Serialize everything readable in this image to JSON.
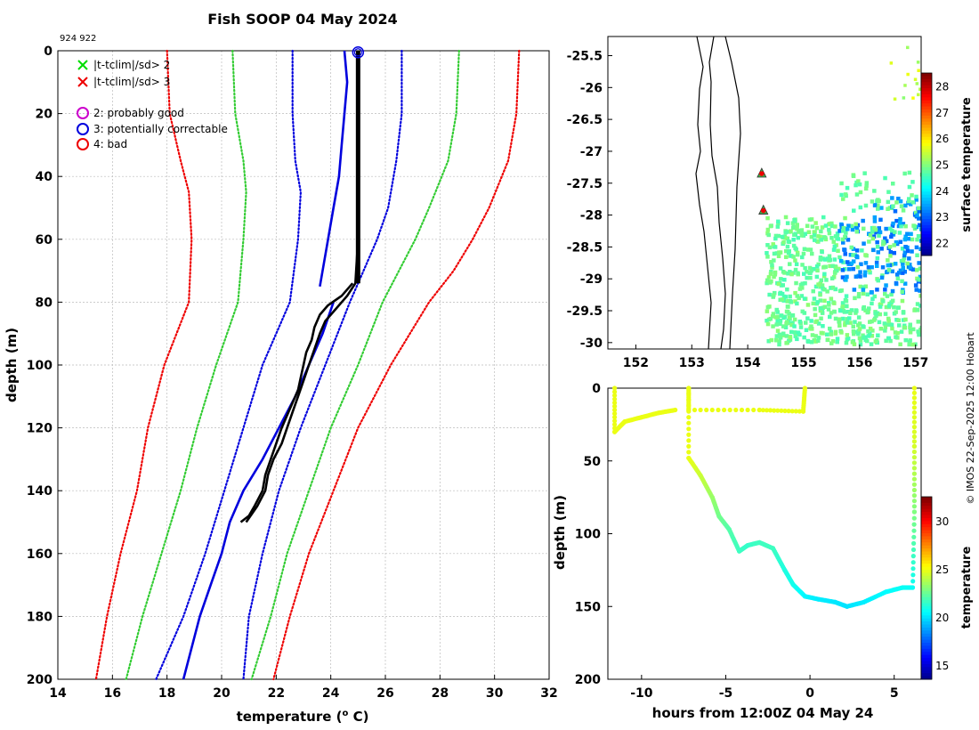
{
  "figure": {
    "title": "Fish SOOP 04 May 2024",
    "id_label": "924 922",
    "credit": "© IMOS 22-Sep-2025 12:00 Hobart"
  },
  "chart_data": [
    {
      "name": "profile",
      "type": "line",
      "xlabel": "temperature (o C)",
      "ylabel": "depth (m)",
      "xlim": [
        14,
        32
      ],
      "ylim": [
        200,
        0
      ],
      "xticks": [
        14,
        16,
        18,
        20,
        22,
        24,
        26,
        28,
        30,
        32
      ],
      "yticks": [
        0,
        20,
        40,
        60,
        80,
        100,
        120,
        140,
        160,
        180,
        200
      ],
      "grid": true,
      "legend": [
        {
          "marker": "x",
          "color": "#00dd00",
          "label": "|t-tclim|/sd> 2"
        },
        {
          "marker": "x",
          "color": "#ee0000",
          "label": "|t-tclim|/sd> 3"
        },
        {
          "marker": "o",
          "color": "#cc00cc",
          "label": "2: probably good"
        },
        {
          "marker": "o",
          "color": "#0000dd",
          "label": "3: potentially correctable"
        },
        {
          "marker": "o",
          "color": "#ee0000",
          "label": "4: bad"
        }
      ],
      "series": [
        {
          "name": "clim -3sd",
          "color": "#ee0000",
          "style": "dotted",
          "depth": [
            0,
            20,
            35,
            45,
            60,
            80,
            100,
            120,
            140,
            160,
            180,
            200
          ],
          "temp": [
            18.0,
            18.1,
            18.5,
            18.8,
            18.9,
            18.8,
            17.9,
            17.3,
            16.9,
            16.3,
            15.8,
            15.4
          ]
        },
        {
          "name": "clim -2sd",
          "color": "#33cc33",
          "style": "dotted",
          "depth": [
            0,
            20,
            35,
            45,
            60,
            80,
            100,
            120,
            140,
            160,
            180,
            200
          ],
          "temp": [
            20.4,
            20.5,
            20.8,
            20.9,
            20.8,
            20.6,
            19.8,
            19.1,
            18.5,
            17.8,
            17.1,
            16.5
          ]
        },
        {
          "name": "clim -1sd",
          "color": "#0000dd",
          "style": "dotted",
          "depth": [
            0,
            20,
            35,
            45,
            60,
            80,
            100,
            120,
            140,
            160,
            180,
            200
          ],
          "temp": [
            22.6,
            22.6,
            22.7,
            22.9,
            22.8,
            22.5,
            21.5,
            20.8,
            20.1,
            19.4,
            18.6,
            17.6
          ]
        },
        {
          "name": "climatology mean",
          "color": "#0000dd",
          "style": "solid",
          "depth": [
            0,
            10,
            20,
            30,
            40,
            50,
            60,
            75
          ],
          "temp": [
            24.5,
            24.6,
            24.5,
            24.4,
            24.3,
            24.1,
            23.9,
            23.6
          ]
        },
        {
          "name": "climatology mean deep",
          "color": "#0000dd",
          "style": "solid",
          "depth": [
            80,
            90,
            100,
            110,
            120,
            130,
            140,
            150,
            160,
            170,
            180,
            190,
            200
          ],
          "temp": [
            24.1,
            23.7,
            23.2,
            22.7,
            22.1,
            21.5,
            20.8,
            20.3,
            20.0,
            19.6,
            19.2,
            18.9,
            18.6
          ]
        },
        {
          "name": "clim +1sd",
          "color": "#0000dd",
          "style": "dotted",
          "depth": [
            0,
            20,
            35,
            50,
            60,
            70,
            80,
            100,
            120,
            140,
            160,
            180,
            200
          ],
          "temp": [
            26.6,
            26.6,
            26.4,
            26.1,
            25.7,
            25.2,
            24.7,
            23.8,
            22.9,
            22.1,
            21.5,
            21.0,
            20.8
          ]
        },
        {
          "name": "clim +2sd",
          "color": "#33cc33",
          "style": "dotted",
          "depth": [
            0,
            20,
            35,
            50,
            60,
            70,
            80,
            100,
            120,
            140,
            160,
            180,
            200
          ],
          "temp": [
            28.7,
            28.6,
            28.3,
            27.6,
            27.1,
            26.5,
            25.9,
            25.0,
            24.0,
            23.2,
            22.4,
            21.8,
            21.1
          ]
        },
        {
          "name": "clim +3sd",
          "color": "#ee0000",
          "style": "dotted",
          "depth": [
            0,
            20,
            35,
            50,
            60,
            70,
            80,
            100,
            120,
            140,
            160,
            180,
            200
          ],
          "temp": [
            30.9,
            30.8,
            30.5,
            29.8,
            29.2,
            28.5,
            27.6,
            26.2,
            25.0,
            24.1,
            23.2,
            22.5,
            21.9
          ]
        },
        {
          "name": "observed profile",
          "color": "#000000",
          "style": "solid",
          "depth": [
            0,
            20,
            40,
            60,
            74,
            78,
            82,
            86,
            90,
            95,
            100,
            105,
            110,
            115,
            120,
            125,
            130,
            135,
            140,
            145,
            150
          ],
          "temp": [
            25.0,
            25.0,
            25.0,
            25.0,
            24.9,
            24.6,
            24.2,
            23.8,
            23.6,
            23.4,
            23.2,
            23.0,
            22.8,
            22.6,
            22.4,
            22.2,
            21.9,
            21.7,
            21.6,
            21.3,
            20.9
          ]
        },
        {
          "name": "observed profile b",
          "color": "#000000",
          "style": "solid",
          "depth": [
            74,
            78,
            81,
            84,
            88,
            92,
            96,
            100,
            104,
            108,
            112,
            116,
            120,
            125,
            130,
            135,
            140,
            145,
            148,
            150
          ],
          "temp": [
            24.8,
            24.4,
            23.9,
            23.6,
            23.4,
            23.3,
            23.1,
            23.0,
            22.9,
            22.8,
            22.6,
            22.4,
            22.2,
            22.0,
            21.8,
            21.6,
            21.5,
            21.2,
            21.0,
            20.7
          ]
        }
      ],
      "qc_flag": {
        "label": "3: potentially correctable",
        "temp": 25.0,
        "depth": 0.5
      }
    },
    {
      "name": "map",
      "type": "heatmap",
      "colorbar_label": "surface temperature",
      "xlim": [
        151.5,
        157.1
      ],
      "ylim": [
        -30.1,
        -25.2
      ],
      "xticks": [
        152,
        153,
        154,
        155,
        156,
        157
      ],
      "yticks": [
        -25.5,
        -26,
        -26.5,
        -27,
        -27.5,
        -28,
        -28.5,
        -29,
        -29.5,
        -30
      ],
      "colorbar_ticks": [
        22,
        23,
        24,
        25,
        26,
        27,
        28
      ],
      "colorbar_range": [
        21.5,
        28.5
      ],
      "stations": [
        {
          "lon": 154.25,
          "lat": -27.35
        },
        {
          "lon": 154.28,
          "lat": -27.93
        }
      ]
    },
    {
      "name": "depth-time",
      "type": "scatter",
      "xlabel": "hours from 12:00Z 04 May 24",
      "ylabel": "depth (m)",
      "colorbar_label": "temperature",
      "xlim": [
        -12,
        6.6
      ],
      "ylim": [
        200,
        0
      ],
      "xticks": [
        -10,
        -5,
        0,
        5
      ],
      "yticks": [
        0,
        50,
        100,
        150,
        200
      ],
      "colorbar_ticks": [
        15,
        20,
        25,
        30
      ],
      "colorbar_range": [
        13.5,
        32.5
      ],
      "track": [
        [
          -11.6,
          0,
          25.0
        ],
        [
          -11.6,
          30,
          25.0
        ],
        [
          -11.0,
          23,
          25.0
        ],
        [
          -10.0,
          20,
          25.0
        ],
        [
          -9.0,
          17,
          25.0
        ],
        [
          -8.0,
          15,
          25.0
        ],
        [
          -7.2,
          15,
          25.0
        ],
        [
          -7.2,
          0,
          25.0
        ],
        [
          -7.2,
          48,
          25.0
        ],
        [
          -6.5,
          60,
          24.4
        ],
        [
          -5.8,
          75,
          23.5
        ],
        [
          -5.4,
          88,
          22.8
        ],
        [
          -4.8,
          97,
          22.2
        ],
        [
          -4.2,
          112,
          21.8
        ],
        [
          -3.7,
          108,
          21.6
        ],
        [
          -3.0,
          106,
          21.8
        ],
        [
          -2.2,
          110,
          21.8
        ],
        [
          -1.5,
          125,
          21.2
        ],
        [
          -1.0,
          135,
          21.0
        ],
        [
          -0.3,
          143,
          20.5
        ],
        [
          0.5,
          145,
          20.3
        ],
        [
          1.5,
          147,
          20.2
        ],
        [
          2.2,
          150,
          20.1
        ],
        [
          3.2,
          147,
          20.3
        ],
        [
          4.5,
          140,
          20.6
        ],
        [
          5.5,
          137,
          20.8
        ],
        [
          6.1,
          137,
          20.8
        ],
        [
          6.2,
          85,
          23.0
        ],
        [
          6.2,
          40,
          24.6
        ],
        [
          6.2,
          0,
          25.0
        ],
        [
          -7.2,
          15,
          25.0
        ],
        [
          -3.0,
          15,
          25.0
        ],
        [
          -0.4,
          16,
          25.0
        ],
        [
          -0.3,
          0,
          25.0
        ]
      ]
    }
  ]
}
